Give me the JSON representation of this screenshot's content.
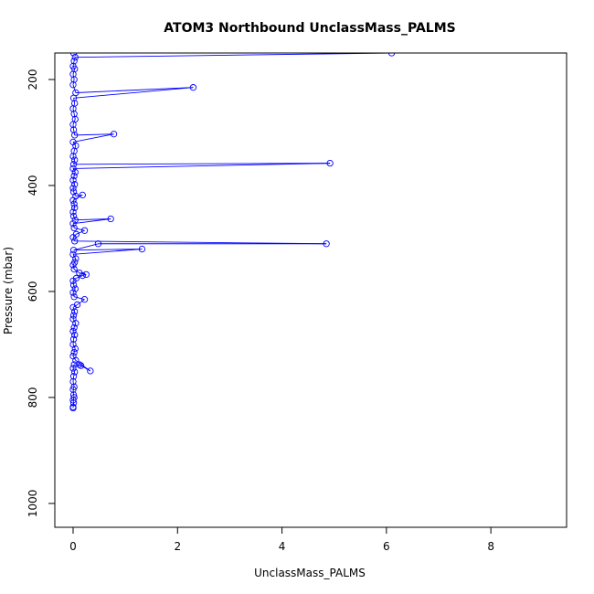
{
  "chart_data": {
    "type": "scatter",
    "title": "ATOM3 Northbound UnclassMass_PALMS",
    "xlabel": "UnclassMass_PALMS",
    "ylabel": "Pressure (mbar)",
    "xlim": [
      -0.35,
      9.45
    ],
    "ylim": [
      1045,
      150
    ],
    "y_reversed": true,
    "x_ticks": [
      0,
      2,
      4,
      6,
      8
    ],
    "y_ticks": [
      200,
      400,
      600,
      800,
      1000
    ],
    "grid": false,
    "color": "#0000ff",
    "series": [
      {
        "points": [
          [
            0.0,
            820
          ],
          [
            0.0,
            818
          ],
          [
            0.01,
            810
          ],
          [
            0.0,
            805
          ],
          [
            0.02,
            800
          ],
          [
            0.01,
            795
          ],
          [
            0.0,
            785
          ],
          [
            0.02,
            780
          ],
          [
            0.0,
            770
          ],
          [
            0.01,
            760
          ],
          [
            0.03,
            752
          ],
          [
            0.0,
            745
          ],
          [
            0.02,
            738
          ],
          [
            0.15,
            740
          ],
          [
            0.12,
            738
          ],
          [
            0.33,
            750
          ],
          [
            0.05,
            730
          ],
          [
            0.0,
            722
          ],
          [
            0.02,
            715
          ],
          [
            0.04,
            708
          ],
          [
            0.0,
            700
          ],
          [
            0.01,
            690
          ],
          [
            0.03,
            682
          ],
          [
            0.0,
            675
          ],
          [
            0.02,
            668
          ],
          [
            0.05,
            660
          ],
          [
            0.0,
            652
          ],
          [
            0.01,
            645
          ],
          [
            0.03,
            638
          ],
          [
            0.0,
            630
          ],
          [
            0.08,
            625
          ],
          [
            0.22,
            615
          ],
          [
            0.02,
            610
          ],
          [
            0.0,
            602
          ],
          [
            0.04,
            595
          ],
          [
            0.01,
            588
          ],
          [
            0.0,
            580
          ],
          [
            0.06,
            575
          ],
          [
            0.18,
            570
          ],
          [
            0.25,
            568
          ],
          [
            0.12,
            565
          ],
          [
            0.02,
            558
          ],
          [
            0.0,
            550
          ],
          [
            0.03,
            545
          ],
          [
            0.05,
            538
          ],
          [
            0.0,
            530
          ],
          [
            1.32,
            520
          ],
          [
            0.01,
            522
          ],
          [
            0.48,
            510
          ],
          [
            4.85,
            510
          ],
          [
            0.03,
            505
          ],
          [
            0.0,
            498
          ],
          [
            0.06,
            492
          ],
          [
            0.22,
            485
          ],
          [
            0.02,
            480
          ],
          [
            0.0,
            472
          ],
          [
            0.72,
            463
          ],
          [
            0.04,
            465
          ],
          [
            0.01,
            458
          ],
          [
            0.0,
            450
          ],
          [
            0.03,
            442
          ],
          [
            0.02,
            435
          ],
          [
            0.0,
            428
          ],
          [
            0.18,
            418
          ],
          [
            0.05,
            420
          ],
          [
            0.01,
            412
          ],
          [
            0.0,
            405
          ],
          [
            0.03,
            398
          ],
          [
            0.0,
            390
          ],
          [
            0.02,
            382
          ],
          [
            0.04,
            375
          ],
          [
            0.0,
            368
          ],
          [
            4.92,
            358
          ],
          [
            0.01,
            360
          ],
          [
            0.03,
            352
          ],
          [
            0.0,
            345
          ],
          [
            0.02,
            335
          ],
          [
            0.05,
            325
          ],
          [
            0.0,
            318
          ],
          [
            0.78,
            303
          ],
          [
            0.03,
            305
          ],
          [
            0.01,
            295
          ],
          [
            0.0,
            285
          ],
          [
            0.04,
            275
          ],
          [
            0.02,
            265
          ],
          [
            0.0,
            255
          ],
          [
            0.03,
            245
          ],
          [
            0.01,
            235
          ],
          [
            2.3,
            215
          ],
          [
            0.05,
            225
          ],
          [
            0.0,
            210
          ],
          [
            0.02,
            200
          ],
          [
            0.0,
            190
          ],
          [
            0.03,
            180
          ],
          [
            0.0,
            175
          ],
          [
            0.02,
            165
          ],
          [
            0.04,
            158
          ],
          [
            6.1,
            150
          ],
          [
            0.01,
            150
          ]
        ]
      }
    ]
  }
}
